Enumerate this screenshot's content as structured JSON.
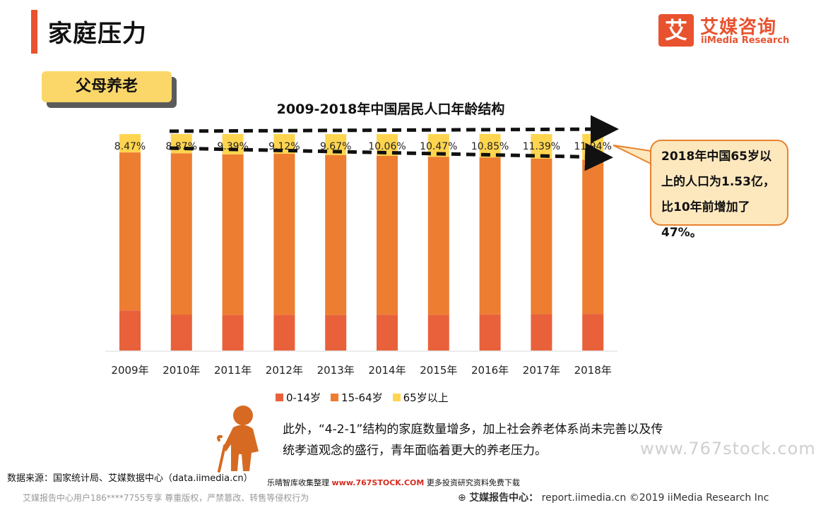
{
  "header": {
    "title": "家庭压力"
  },
  "logo": {
    "mark": "艾",
    "name_cn": "艾媒咨询",
    "name_en": "iiMedia Research"
  },
  "section_tag": "父母养老",
  "colors": {
    "accent": "#e8522f",
    "age_0_14": "#e8613a",
    "age_15_64": "#ed7d31",
    "age_65_plus": "#ffd54f",
    "callout_border": "#e8822f"
  },
  "chart_data": {
    "type": "bar",
    "stacked": true,
    "title": "2009-2018年中国居民人口年龄结构",
    "categories": [
      "2009年",
      "2010年",
      "2011年",
      "2012年",
      "2013年",
      "2014年",
      "2015年",
      "2016年",
      "2017年",
      "2018年"
    ],
    "ylim": [
      0,
      100
    ],
    "series": [
      {
        "name": "0-14岁",
        "values": [
          18.5,
          16.6,
          16.4,
          16.5,
          16.4,
          16.5,
          16.5,
          16.7,
          16.8,
          16.9
        ]
      },
      {
        "name": "15-64岁",
        "values": [
          73.0,
          74.5,
          74.2,
          74.4,
          73.9,
          73.4,
          73.0,
          72.5,
          71.8,
          71.2
        ]
      },
      {
        "name": "65岁以上",
        "values": [
          8.47,
          8.87,
          9.39,
          9.12,
          9.67,
          10.06,
          10.47,
          10.85,
          11.39,
          11.94
        ]
      }
    ],
    "data_labels": [
      "8.47%",
      "8.87%",
      "9.39%",
      "9.12%",
      "9.67%",
      "10.06%",
      "10.47%",
      "10.85%",
      "11.39%",
      "11.94%"
    ],
    "legend_position": "bottom",
    "grid": false
  },
  "callout": {
    "text": "2018年中国65岁以上的人口为1.53亿，比10年前增加了47%。"
  },
  "note": {
    "text": "此外，“4-2-1”结构的家庭数量增多，加上社会养老体系尚未完善以及传统孝道观念的盛行，青年面临着更大的养老压力。"
  },
  "watermark": "www.767stock.com",
  "source": "数据来源：国家统计局、艾媒数据中心（data.iimedia.cn）",
  "promo": {
    "prefix": "乐晴智库收集整理",
    "site": "www.767STOCK.COM",
    "suffix": "更多投资研究资料免费下载"
  },
  "footer": {
    "left": "艾媒报告中心用户186****7755专享 尊重版权，严禁篡改、转售等侵权行为",
    "center_label": "艾媒报告中心：",
    "center_url": "report.iimedia.cn",
    "copyright": "©2019  iiMedia Research  Inc"
  }
}
